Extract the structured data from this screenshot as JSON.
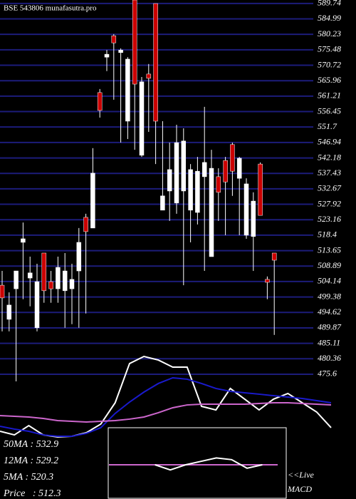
{
  "chart_data": {
    "type": "candlestick",
    "title": "BSE 543806 munafasutra.pro",
    "ylim": [
      473.4,
      590.8
    ],
    "yticks": [
      589.74,
      584.99,
      580.23,
      575.48,
      570.72,
      565.96,
      561.21,
      556.45,
      551.7,
      546.94,
      542.18,
      537.43,
      532.67,
      527.92,
      523.16,
      518.4,
      513.65,
      508.89,
      504.14,
      499.38,
      494.62,
      489.87,
      485.11,
      480.36,
      475.6
    ],
    "grid": true,
    "grid_color": "#1c1c7a",
    "up_color": "#ffffff",
    "down_color": "#cc0000",
    "open": [
      503.0,
      492.5,
      501.9,
      516.2,
      505.2,
      489.9,
      512.9,
      504.1,
      501.9,
      501.3,
      501.9,
      507.4,
      523.9,
      520.6,
      562.3,
      573.2,
      579.8,
      574.6,
      553.5,
      590.8,
      543.0,
      568.0,
      589.7,
      526.1,
      532.0,
      528.3,
      532.0,
      526.1,
      525.4,
      536.4,
      511.8,
      536.4,
      541.4,
      546.3,
      535.9,
      518.4,
      518.0,
      540.3,
      504.8,
      512.9
    ],
    "high": [
      507.4,
      500.8,
      507.4,
      522.3,
      511.8,
      509.6,
      512.9,
      507.4,
      511.8,
      512.9,
      509.6,
      520.6,
      525.0,
      545.2,
      563.4,
      575.4,
      580.3,
      575.9,
      573.2,
      590.8,
      567.1,
      571.1,
      589.7,
      553.5,
      546.9,
      552.4,
      551.3,
      540.3,
      542.5,
      557.9,
      544.7,
      539.0,
      542.5,
      546.9,
      542.5,
      535.9,
      531.6,
      540.8,
      505.7,
      512.9
    ],
    "low": [
      488.8,
      488.8,
      473.4,
      498.7,
      496.5,
      488.8,
      497.6,
      497.6,
      497.6,
      489.9,
      491.0,
      489.9,
      494.3,
      520.6,
      554.6,
      568.9,
      560.1,
      546.9,
      548.0,
      544.7,
      542.5,
      550.2,
      540.3,
      526.1,
      522.8,
      525.0,
      503.0,
      516.2,
      521.7,
      507.4,
      511.8,
      522.8,
      518.4,
      530.5,
      518.4,
      517.3,
      507.4,
      524.5,
      498.7,
      487.7
    ],
    "close": [
      499.1,
      496.9,
      507.4,
      517.3,
      506.8,
      504.1,
      501.3,
      501.9,
      508.5,
      507.4,
      504.8,
      516.2,
      519.5,
      537.5,
      556.8,
      574.1,
      577.6,
      575.4,
      572.6,
      564.9,
      565.6,
      566.7,
      553.5,
      530.5,
      538.6,
      546.9,
      547.4,
      538.6,
      538.1,
      540.8,
      539.0,
      531.6,
      534.8,
      538.1,
      542.1,
      534.2,
      528.9,
      524.5,
      503.9,
      510.7
    ],
    "indicators": {
      "ylim": [
        0,
        100
      ],
      "series": [
        {
          "color": "#ffffff",
          "values": [
            10.7,
            7.1,
            16.4,
            7.1,
            5,
            5.7,
            9.3,
            17.9,
            39.3,
            78.6,
            85.7,
            82.1,
            75,
            75,
            35.7,
            32.1,
            53.6,
            42.9,
            32.1,
            42.9,
            48.6,
            39.3,
            30,
            14.3
          ]
        },
        {
          "color": "#1a1acc",
          "values": [
            15.7,
            12.9,
            10.7,
            7.1,
            5.7,
            5.7,
            8.6,
            14.3,
            28.6,
            40,
            50,
            58.6,
            64.3,
            62.9,
            58.6,
            53.6,
            50.7,
            49.3,
            47.9,
            46.4,
            45,
            43.6,
            41.4,
            39.3
          ]
        },
        {
          "color": "#cc66cc",
          "values": [
            26.4,
            25.7,
            25,
            23.6,
            21.4,
            20.7,
            20,
            20.7,
            21.4,
            22.9,
            25,
            29.3,
            34.3,
            37.1,
            37.9,
            37.9,
            37.9,
            37.9,
            38.6,
            39.3,
            39.3,
            38.6,
            37.9,
            37.1
          ]
        }
      ]
    },
    "macd": {
      "ylim": [
        -1,
        1
      ],
      "series": [
        {
          "color": "#cc66cc",
          "values": [
            0,
            0,
            0,
            0,
            0,
            0,
            0,
            0,
            0,
            0,
            0,
            0
          ]
        },
        {
          "color": "#ffffff",
          "values": [
            null,
            null,
            null,
            0,
            -0.15,
            0,
            0.1,
            0.2,
            0.15,
            -0.1,
            0,
            null
          ]
        }
      ]
    },
    "labels": [
      "50MA : 532.9",
      "12MA : 529.2",
      "5MA : 520.3",
      "Price   : 512.3"
    ],
    "live": "<<Live",
    "macd_label": "MACD"
  }
}
